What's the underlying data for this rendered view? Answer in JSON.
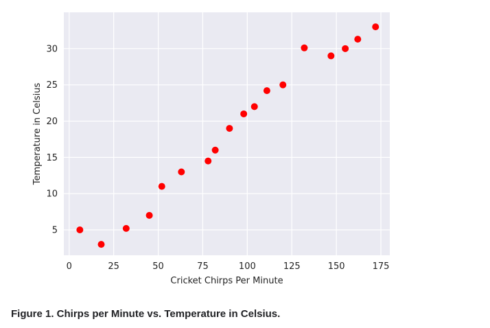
{
  "chart_data": {
    "type": "scatter",
    "title": "",
    "xlabel": "Cricket Chirps Per Minute",
    "ylabel": "Temperature in Celsius",
    "xlim": [
      -3,
      180
    ],
    "ylim": [
      1.5,
      35
    ],
    "xticks": [
      0,
      25,
      50,
      75,
      100,
      125,
      150,
      175
    ],
    "yticks": [
      5,
      10,
      15,
      20,
      25,
      30
    ],
    "grid": true,
    "legend": "none",
    "background_color": "#EAEAF2",
    "grid_color": "#FFFFFF",
    "point_color": "#FF0000",
    "series": [
      {
        "x": [
          6,
          18,
          32,
          45,
          52,
          63,
          78,
          82,
          90,
          98,
          104,
          111,
          120,
          132,
          147,
          155,
          162,
          172
        ],
        "y": [
          5,
          3,
          5.2,
          7,
          11,
          13,
          14.5,
          16,
          19,
          21,
          22,
          24.2,
          25,
          30.1,
          29,
          30,
          31.3,
          33
        ]
      }
    ]
  },
  "caption": "Figure 1. Chirps per Minute vs. Temperature in Celsius."
}
